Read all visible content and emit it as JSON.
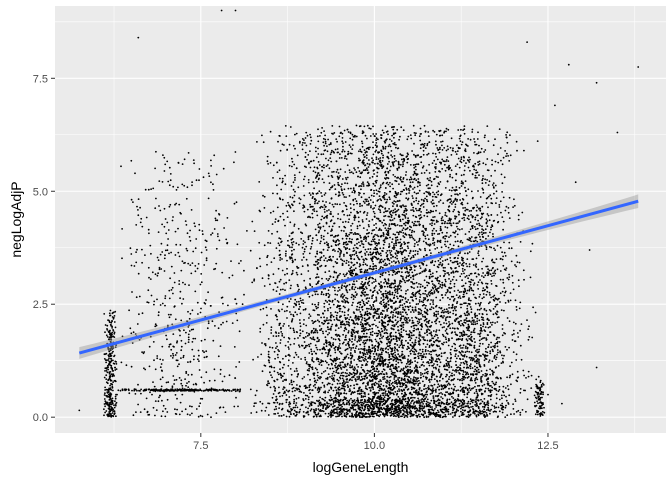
{
  "chart_data": {
    "type": "scatter",
    "title": "",
    "xlabel": "logGeneLength",
    "ylabel": "negLogAdjP",
    "xlim": [
      5.4,
      14.2
    ],
    "ylim": [
      -0.35,
      9.1
    ],
    "x_ticks": [
      7.5,
      10.0,
      12.5
    ],
    "x_tick_labels": [
      "7.5",
      "10.0",
      "12.5"
    ],
    "y_ticks": [
      0.0,
      2.5,
      5.0,
      7.5
    ],
    "y_tick_labels": [
      "0.0",
      "2.5",
      "5.0",
      "7.5"
    ],
    "grid": true,
    "legend": "none",
    "point_color": "#000000",
    "fit_line_color": "#3366ff",
    "ribbon_color": "#999999",
    "panel_background": "#ebebeb",
    "gridline_color": "#ffffff",
    "trend_line": {
      "method": "linear",
      "points": [
        [
          5.75,
          1.42
        ],
        [
          13.8,
          4.78
        ]
      ],
      "ci_halfwidth": [
        0.13,
        0.05,
        0.15
      ]
    },
    "point_cloud": {
      "approximate_count": 9000,
      "clusters": [
        {
          "x_range": [
            8.2,
            12.0
          ],
          "x_center": 10.3,
          "y_range": [
            0.0,
            9.0
          ],
          "weight": 0.72
        },
        {
          "x_range": [
            11.0,
            12.4
          ],
          "x_center": 11.4,
          "y_range": [
            0.0,
            8.8
          ],
          "weight": 0.08
        },
        {
          "x_range": [
            6.3,
            8.2
          ],
          "x_center": 7.2,
          "y_range": [
            0.0,
            8.2
          ],
          "weight": 0.06
        },
        {
          "x_range": [
            6.1,
            6.3
          ],
          "x_center": 6.2,
          "y_range": [
            0.0,
            3.3
          ],
          "weight": 0.035
        },
        {
          "x_range": [
            6.2,
            8.25
          ],
          "x_center": 7.2,
          "y_range": [
            0.58,
            0.62
          ],
          "weight": 0.025
        },
        {
          "x_range": [
            12.3,
            12.45
          ],
          "x_center": 12.4,
          "y_range": [
            0.0,
            1.3
          ],
          "weight": 0.01
        },
        {
          "x_range": [
            8.2,
            12.0
          ],
          "x_center": 10.2,
          "y_range": [
            0.0,
            0.4
          ],
          "weight": 0.05
        }
      ],
      "outliers": [
        [
          5.75,
          0.15
        ],
        [
          8.0,
          9.0
        ],
        [
          12.8,
          7.8
        ],
        [
          13.2,
          7.4
        ],
        [
          13.5,
          6.3
        ],
        [
          13.8,
          7.75
        ],
        [
          12.6,
          6.9
        ],
        [
          12.2,
          8.3
        ],
        [
          12.9,
          5.2
        ],
        [
          13.1,
          3.7
        ],
        [
          13.2,
          1.1
        ],
        [
          12.7,
          0.3
        ],
        [
          12.5,
          0.5
        ],
        [
          7.8,
          9.0
        ],
        [
          6.6,
          8.4
        ]
      ]
    }
  }
}
